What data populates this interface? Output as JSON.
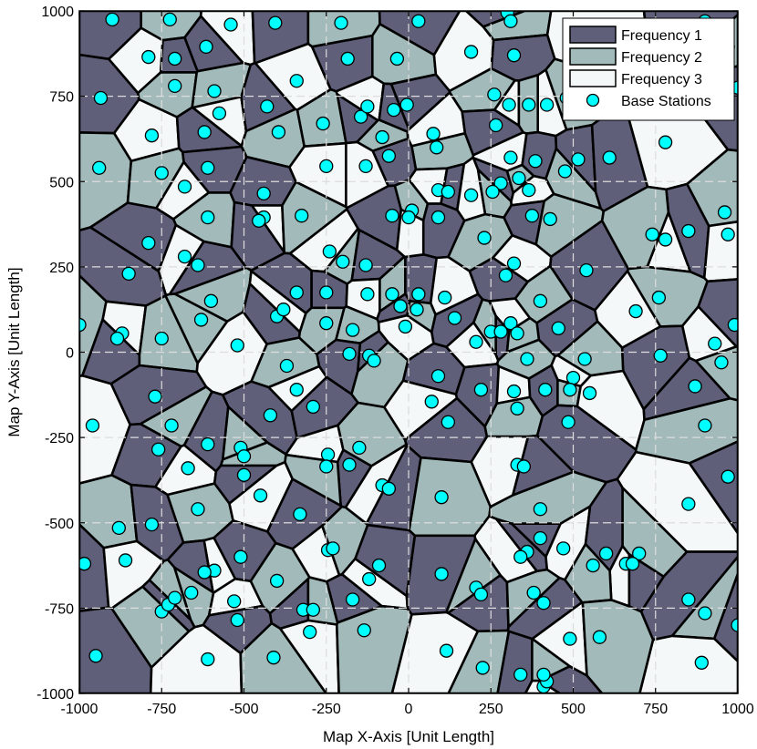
{
  "chart_data": {
    "type": "scatter",
    "title": "",
    "xlabel": "Map X-Axis [Unit Length]",
    "ylabel": "Map Y-Axis [Unit Length]",
    "xlim": [
      -1000,
      1000
    ],
    "ylim": [
      -1000,
      1000
    ],
    "xticks": [
      -1000,
      -750,
      -500,
      -250,
      0,
      250,
      500,
      750,
      1000
    ],
    "yticks": [
      -1000,
      -750,
      -500,
      -250,
      0,
      250,
      500,
      750,
      1000
    ],
    "xtick_labels": [
      "-1000",
      "-750",
      "-500",
      "-250",
      "0",
      "250",
      "500",
      "750",
      "1000"
    ],
    "ytick_labels": [
      "-1000",
      "-750",
      "-500",
      "-250",
      "0",
      "250",
      "500",
      "750",
      "1000"
    ],
    "grid": true,
    "legend_position": "top-right",
    "colors": {
      "frequency_1": "#5f5f7a",
      "frequency_2": "#a3baba",
      "frequency_3": "#f5f8f8",
      "station": "#00ffff",
      "edge": "#000000",
      "grid": "#dddddd"
    },
    "legend": [
      {
        "label": "Frequency 1",
        "kind": "patch",
        "color": "#5f5f7a"
      },
      {
        "label": "Frequency 2",
        "kind": "patch",
        "color": "#a3baba"
      },
      {
        "label": "Frequency 3",
        "kind": "patch",
        "color": "#f5f8f8"
      },
      {
        "label": "Base Stations",
        "kind": "marker",
        "color": "#00ffff"
      }
    ],
    "series": [
      {
        "name": "Base Stations",
        "points": [
          [
            -900,
            975
          ],
          [
            -725,
            975
          ],
          [
            -540,
            960
          ],
          [
            -405,
            965
          ],
          [
            -205,
            965
          ],
          [
            30,
            970
          ],
          [
            300,
            995
          ],
          [
            310,
            970
          ],
          [
            540,
            935
          ],
          [
            900,
            970
          ],
          [
            970,
            895
          ],
          [
            -935,
            745
          ],
          [
            -790,
            865
          ],
          [
            -710,
            860
          ],
          [
            -615,
            895
          ],
          [
            -710,
            780
          ],
          [
            -590,
            765
          ],
          [
            -575,
            700
          ],
          [
            -430,
            720
          ],
          [
            -340,
            795
          ],
          [
            -185,
            860
          ],
          [
            -35,
            860
          ],
          [
            190,
            880
          ],
          [
            320,
            870
          ],
          [
            260,
            755
          ],
          [
            420,
            725
          ],
          [
            480,
            745
          ],
          [
            305,
            725
          ],
          [
            365,
            725
          ],
          [
            1000,
            775
          ],
          [
            -780,
            635
          ],
          [
            -620,
            645
          ],
          [
            -395,
            645
          ],
          [
            -260,
            670
          ],
          [
            -145,
            690
          ],
          [
            -125,
            720
          ],
          [
            -80,
            630
          ],
          [
            -45,
            710
          ],
          [
            -5,
            725
          ],
          [
            75,
            640
          ],
          [
            85,
            600
          ],
          [
            265,
            665
          ],
          [
            310,
            570
          ],
          [
            280,
            495
          ],
          [
            335,
            510
          ],
          [
            385,
            560
          ],
          [
            475,
            530
          ],
          [
            515,
            565
          ],
          [
            610,
            570
          ],
          [
            780,
            615
          ],
          [
            -940,
            540
          ],
          [
            -750,
            525
          ],
          [
            -610,
            540
          ],
          [
            -680,
            485
          ],
          [
            -610,
            395
          ],
          [
            -440,
            465
          ],
          [
            -440,
            395
          ],
          [
            -250,
            545
          ],
          [
            -130,
            545
          ],
          [
            -60,
            575
          ],
          [
            -50,
            400
          ],
          [
            10,
            415
          ],
          [
            90,
            475
          ],
          [
            120,
            470
          ],
          [
            190,
            460
          ],
          [
            255,
            470
          ],
          [
            90,
            395
          ],
          [
            365,
            475
          ],
          [
            375,
            400
          ],
          [
            430,
            390
          ],
          [
            960,
            410
          ],
          [
            -790,
            320
          ],
          [
            -680,
            280
          ],
          [
            -640,
            255
          ],
          [
            -455,
            385
          ],
          [
            -325,
            400
          ],
          [
            -240,
            295
          ],
          [
            -200,
            265
          ],
          [
            -250,
            175
          ],
          [
            -130,
            255
          ],
          [
            -125,
            170
          ],
          [
            -50,
            170
          ],
          [
            -25,
            135
          ],
          [
            30,
            170
          ],
          [
            110,
            160
          ],
          [
            230,
            335
          ],
          [
            320,
            260
          ],
          [
            295,
            225
          ],
          [
            540,
            240
          ],
          [
            780,
            330
          ],
          [
            850,
            355
          ],
          [
            740,
            345
          ],
          [
            970,
            345
          ],
          [
            -850,
            230
          ],
          [
            -600,
            150
          ],
          [
            -400,
            105
          ],
          [
            -340,
            175
          ],
          [
            -380,
            125
          ],
          [
            -250,
            85
          ],
          [
            -170,
            65
          ],
          [
            -10,
            75
          ],
          [
            0,
            395
          ],
          [
            25,
            125
          ],
          [
            140,
            100
          ],
          [
            250,
            60
          ],
          [
            310,
            85
          ],
          [
            400,
            150
          ],
          [
            455,
            70
          ],
          [
            690,
            120
          ],
          [
            760,
            160
          ],
          [
            990,
            80
          ],
          [
            -1000,
            80
          ],
          [
            -870,
            55
          ],
          [
            -885,
            40
          ],
          [
            -750,
            40
          ],
          [
            -630,
            95
          ],
          [
            -520,
            20
          ],
          [
            -370,
            -40
          ],
          [
            -180,
            -5
          ],
          [
            -120,
            -10
          ],
          [
            -105,
            -25
          ],
          [
            90,
            -70
          ],
          [
            205,
            30
          ],
          [
            280,
            60
          ],
          [
            330,
            55
          ],
          [
            360,
            -20
          ],
          [
            535,
            -20
          ],
          [
            500,
            -75
          ],
          [
            765,
            -10
          ],
          [
            870,
            -100
          ],
          [
            930,
            25
          ],
          [
            950,
            -30
          ],
          [
            -960,
            -215
          ],
          [
            -770,
            -130
          ],
          [
            -720,
            -215
          ],
          [
            -760,
            -285
          ],
          [
            -670,
            -340
          ],
          [
            -610,
            -270
          ],
          [
            -510,
            -280
          ],
          [
            -500,
            -305
          ],
          [
            -500,
            -360
          ],
          [
            -420,
            -185
          ],
          [
            -340,
            -110
          ],
          [
            -290,
            -160
          ],
          [
            -245,
            -300
          ],
          [
            -150,
            -280
          ],
          [
            -180,
            -330
          ],
          [
            -80,
            -390
          ],
          [
            -60,
            -400
          ],
          [
            70,
            -145
          ],
          [
            120,
            -205
          ],
          [
            220,
            -110
          ],
          [
            320,
            -115
          ],
          [
            330,
            -165
          ],
          [
            330,
            -330
          ],
          [
            350,
            -335
          ],
          [
            415,
            -110
          ],
          [
            490,
            -110
          ],
          [
            485,
            -205
          ],
          [
            550,
            -120
          ],
          [
            900,
            -215
          ],
          [
            970,
            -365
          ],
          [
            -880,
            -515
          ],
          [
            -780,
            -505
          ],
          [
            -640,
            -460
          ],
          [
            -450,
            -420
          ],
          [
            -330,
            -475
          ],
          [
            -250,
            -335
          ],
          [
            100,
            -425
          ],
          [
            400,
            -460
          ],
          [
            400,
            -545
          ],
          [
            360,
            -585
          ],
          [
            340,
            -600
          ],
          [
            470,
            -575
          ],
          [
            600,
            -590
          ],
          [
            660,
            -620
          ],
          [
            700,
            -590
          ],
          [
            850,
            -445
          ],
          [
            -985,
            -620
          ],
          [
            -860,
            -610
          ],
          [
            -660,
            -705
          ],
          [
            -590,
            -640
          ],
          [
            -620,
            -645
          ],
          [
            -530,
            -730
          ],
          [
            -520,
            -785
          ],
          [
            -510,
            -600
          ],
          [
            -400,
            -670
          ],
          [
            -320,
            -755
          ],
          [
            -290,
            -755
          ],
          [
            -245,
            -580
          ],
          [
            -230,
            -575
          ],
          [
            -170,
            -725
          ],
          [
            -120,
            -665
          ],
          [
            -90,
            -625
          ],
          [
            100,
            -650
          ],
          [
            205,
            -690
          ],
          [
            220,
            -710
          ],
          [
            380,
            -705
          ],
          [
            410,
            -735
          ],
          [
            560,
            -625
          ],
          [
            680,
            -620
          ],
          [
            850,
            -725
          ],
          [
            900,
            -765
          ],
          [
            1000,
            -800
          ],
          [
            -950,
            -890
          ],
          [
            -750,
            -760
          ],
          [
            -730,
            -740
          ],
          [
            -710,
            -720
          ],
          [
            -610,
            -900
          ],
          [
            -410,
            -895
          ],
          [
            -300,
            -820
          ],
          [
            -135,
            -815
          ],
          [
            115,
            -875
          ],
          [
            225,
            -925
          ],
          [
            340,
            -945
          ],
          [
            410,
            -980
          ],
          [
            420,
            -965
          ],
          [
            410,
            -945
          ],
          [
            490,
            -840
          ],
          [
            580,
            -835
          ],
          [
            890,
            -910
          ]
        ]
      }
    ]
  }
}
